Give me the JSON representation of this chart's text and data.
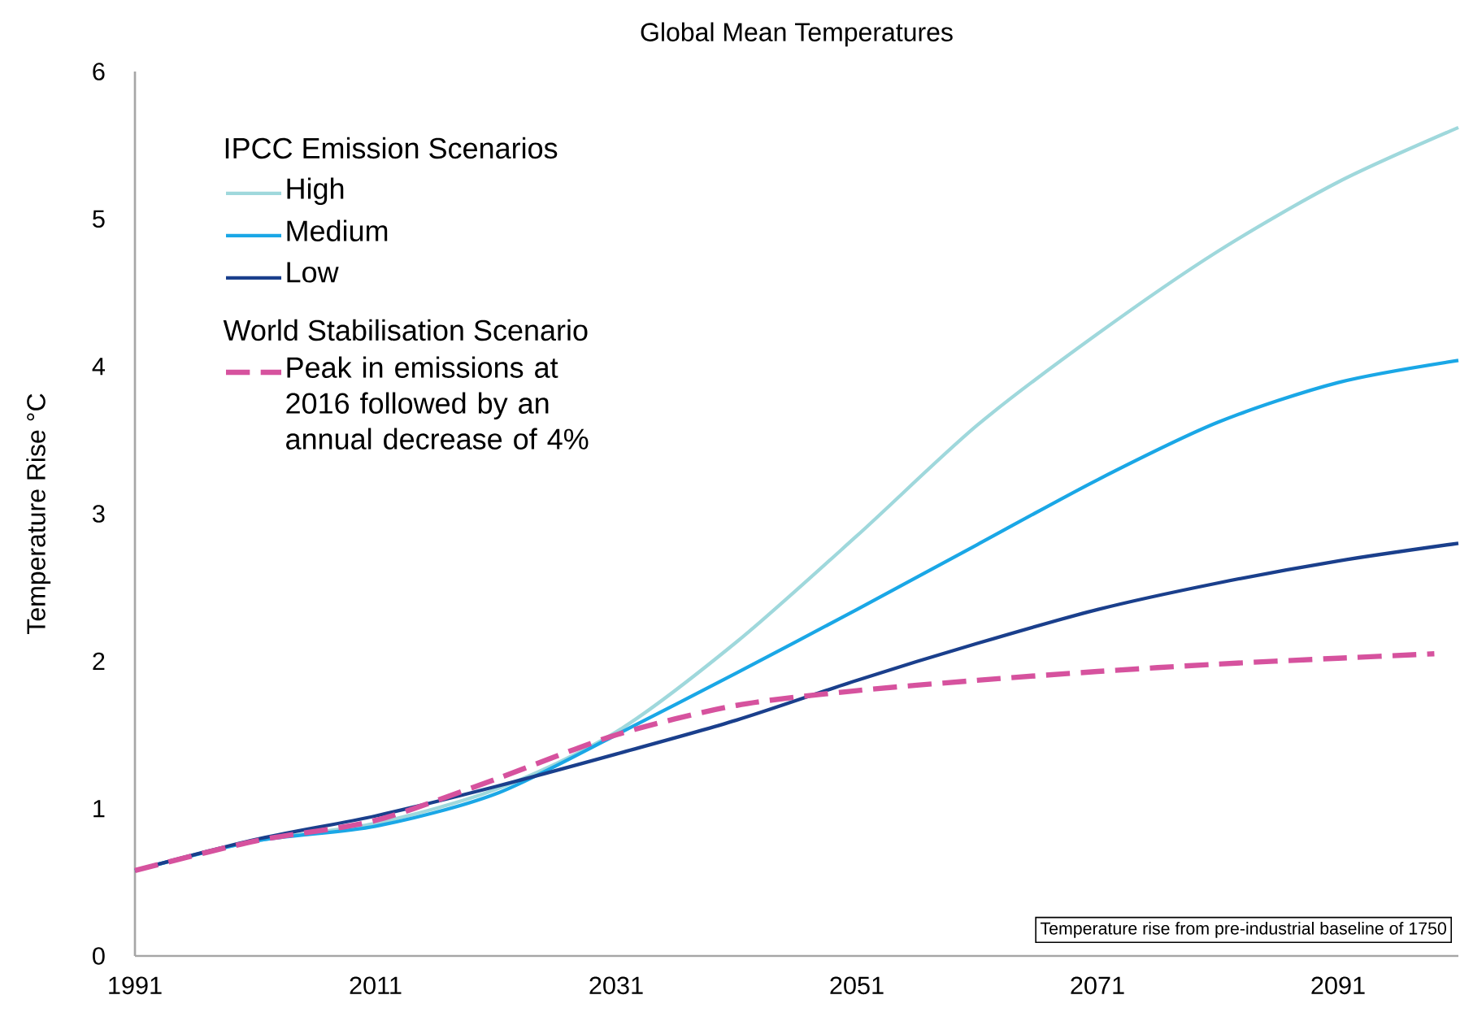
{
  "chart_data": {
    "type": "line",
    "title": "Global Mean Temperatures",
    "ylabel": "Temperature Rise °C",
    "x": [
      1991,
      2001,
      2011,
      2021,
      2031,
      2041,
      2051,
      2061,
      2071,
      2081,
      2091,
      2101
    ],
    "xlim": [
      1991,
      2101
    ],
    "xticks": [
      1991,
      2011,
      2031,
      2051,
      2071,
      2091
    ],
    "ylim": [
      0,
      6
    ],
    "yticks": [
      0,
      1,
      2,
      3,
      4,
      5,
      6
    ],
    "grid": false,
    "legend": "top left",
    "legend_title": "IPCC Emission Scenarios",
    "annotations": [
      "World Stabilisation Scenario",
      "Temperature rise from pre-industrial baseline of 1750"
    ],
    "series": [
      {
        "name": "High",
        "color": "#9fd8dc",
        "values": [
          0.58,
          0.78,
          0.9,
          1.13,
          1.52,
          2.13,
          2.85,
          3.6,
          4.22,
          4.78,
          5.25,
          5.62
        ]
      },
      {
        "name": "Medium",
        "color": "#1aa7e6",
        "values": [
          0.58,
          0.78,
          0.88,
          1.1,
          1.5,
          1.92,
          2.35,
          2.79,
          3.23,
          3.62,
          3.89,
          4.04
        ]
      },
      {
        "name": "Low",
        "color": "#1a3f8c",
        "values": [
          0.58,
          0.79,
          0.95,
          1.15,
          1.37,
          1.6,
          1.87,
          2.12,
          2.35,
          2.53,
          2.68,
          2.8
        ]
      },
      {
        "name": "Peak in emissions at 2016 followed by an annual decrease of 4%",
        "color": "#d6529e",
        "line_style": "dashed",
        "x": [
          1991,
          2001,
          2011,
          2021,
          2031,
          2041,
          2051,
          2061,
          2071,
          2081,
          2091,
          2099
        ],
        "values": [
          0.58,
          0.78,
          0.92,
          1.2,
          1.5,
          1.7,
          1.8,
          1.87,
          1.93,
          1.98,
          2.02,
          2.05
        ]
      }
    ]
  }
}
